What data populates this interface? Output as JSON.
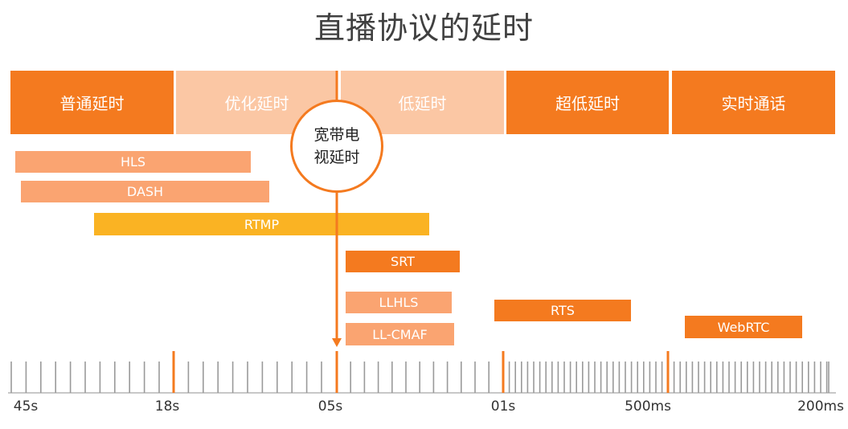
{
  "title": "直播协议的延时",
  "colors": {
    "dark_orange": "#F47A1F",
    "light_orange": "#FBC7A4",
    "protocol_orange": "#FAA471",
    "rtmp_yellow": "#FAB323",
    "strong_orange": "#F47A1F",
    "tick_gray": "#9a9a9a",
    "major_tick": "#F47A1F"
  },
  "categories": [
    {
      "label": "普通延时",
      "style": "dark"
    },
    {
      "label": "优化延时",
      "style": "light"
    },
    {
      "label": "低延时",
      "style": "light"
    },
    {
      "label": "超低延时",
      "style": "dark"
    },
    {
      "label": "实时通话",
      "style": "dark"
    }
  ],
  "marker": {
    "label_line1": "宽带电",
    "label_line2": "视延时",
    "at_tick": "05s"
  },
  "protocols": [
    {
      "label": "HLS",
      "style": "light"
    },
    {
      "label": "DASH",
      "style": "light"
    },
    {
      "label": "RTMP",
      "style": "yellow"
    },
    {
      "label": "SRT",
      "style": "strong"
    },
    {
      "label": "LLHLS",
      "style": "light"
    },
    {
      "label": "LL-CMAF",
      "style": "light"
    },
    {
      "label": "RTS",
      "style": "strong"
    },
    {
      "label": "WebRTC",
      "style": "strong"
    }
  ],
  "axis": {
    "tick_labels": [
      "45s",
      "18s",
      "05s",
      "01s",
      "500ms",
      "200ms"
    ]
  }
}
